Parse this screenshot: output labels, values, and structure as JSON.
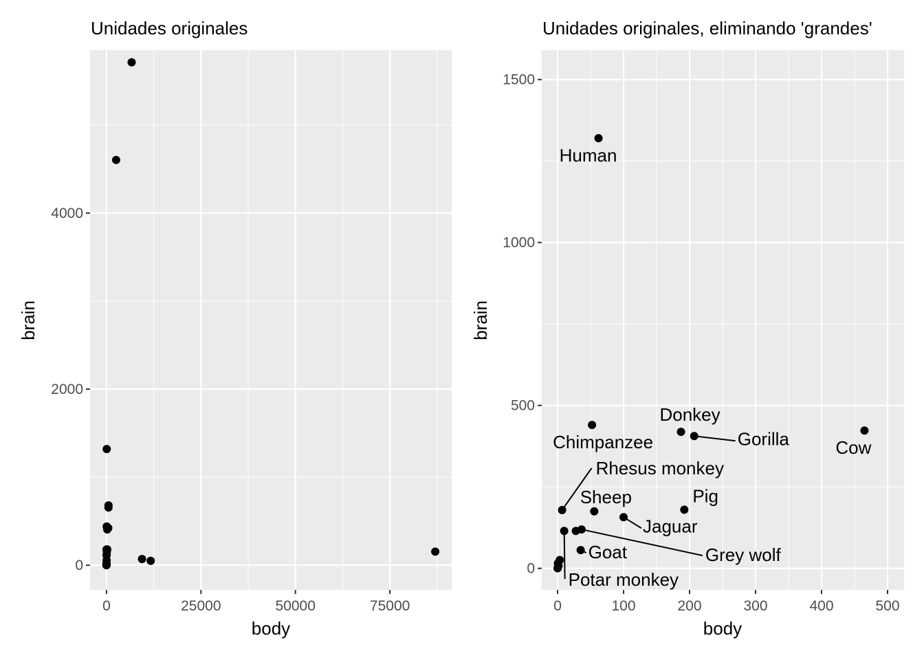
{
  "chart_data": [
    {
      "type": "scatter",
      "title": "Unidades originales",
      "xlabel": "body",
      "ylabel": "brain",
      "xlim": [
        -4350,
        91350
      ],
      "ylim": [
        -280,
        5850
      ],
      "x_ticks": [
        0,
        25000,
        50000,
        75000
      ],
      "x_tick_labels": [
        "0",
        "25000",
        "50000",
        "75000"
      ],
      "y_ticks": [
        0,
        2000,
        4000
      ],
      "y_tick_labels": [
        "0",
        "2000",
        "4000"
      ],
      "grid": true,
      "points": [
        {
          "x": 6654,
          "y": 5712
        },
        {
          "x": 2547,
          "y": 4603
        },
        {
          "x": 87000,
          "y": 154.5
        },
        {
          "x": 9400,
          "y": 70
        },
        {
          "x": 11700,
          "y": 50
        },
        {
          "x": 62,
          "y": 1320
        },
        {
          "x": 521,
          "y": 655
        },
        {
          "x": 529,
          "y": 680
        },
        {
          "x": 207,
          "y": 406
        },
        {
          "x": 465,
          "y": 423
        },
        {
          "x": 187,
          "y": 419
        },
        {
          "x": 52.16,
          "y": 440
        },
        {
          "x": 192,
          "y": 180
        },
        {
          "x": 100,
          "y": 157
        },
        {
          "x": 55.5,
          "y": 175
        },
        {
          "x": 6.8,
          "y": 179
        },
        {
          "x": 36.33,
          "y": 119.5
        },
        {
          "x": 27.66,
          "y": 115
        },
        {
          "x": 10,
          "y": 115
        },
        {
          "x": 35,
          "y": 56
        },
        {
          "x": 3.3,
          "y": 25.6
        },
        {
          "x": 1.35,
          "y": 8.1
        },
        {
          "x": 0.48,
          "y": 15.5
        },
        {
          "x": 1.04,
          "y": 5.5
        },
        {
          "x": 0.12,
          "y": 1
        },
        {
          "x": 0.023,
          "y": 0.4
        },
        {
          "x": 0.28,
          "y": 1.9
        }
      ]
    },
    {
      "type": "scatter",
      "title": "Unidades originales, eliminando 'grandes'",
      "xlabel": "body",
      "ylabel": "brain",
      "xlim": [
        -24,
        525
      ],
      "ylim": [
        -66,
        1590
      ],
      "x_ticks": [
        0,
        100,
        200,
        300,
        400,
        500
      ],
      "x_tick_labels": [
        "0",
        "100",
        "200",
        "300",
        "400",
        "500"
      ],
      "y_ticks": [
        0,
        500,
        1000,
        1500
      ],
      "y_tick_labels": [
        "0",
        "500",
        "1000",
        "1500"
      ],
      "grid": true,
      "points": [
        {
          "x": 62,
          "y": 1320,
          "label": "Human"
        },
        {
          "x": 187,
          "y": 419,
          "label": "Donkey"
        },
        {
          "x": 207,
          "y": 406,
          "label": "Gorilla"
        },
        {
          "x": 465,
          "y": 423,
          "label": "Cow"
        },
        {
          "x": 52.16,
          "y": 440,
          "label": "Chimpanzee"
        },
        {
          "x": 6.8,
          "y": 179,
          "label": "Rhesus monkey"
        },
        {
          "x": 55.5,
          "y": 175,
          "label": "Sheep"
        },
        {
          "x": 192,
          "y": 180,
          "label": "Pig"
        },
        {
          "x": 100,
          "y": 157,
          "label": "Jaguar"
        },
        {
          "x": 36.33,
          "y": 119.5,
          "label": "Grey wolf"
        },
        {
          "x": 35,
          "y": 56,
          "label": "Goat"
        },
        {
          "x": 10,
          "y": 115,
          "label": "Potar monkey"
        },
        {
          "x": 27.66,
          "y": 115
        },
        {
          "x": 3.3,
          "y": 25.6
        },
        {
          "x": 1.35,
          "y": 8.1
        },
        {
          "x": 0.48,
          "y": 15.5
        },
        {
          "x": 1.04,
          "y": 5.5
        },
        {
          "x": 0.12,
          "y": 1
        },
        {
          "x": 0.023,
          "y": 0.4
        },
        {
          "x": 0.28,
          "y": 1.9
        }
      ]
    }
  ]
}
